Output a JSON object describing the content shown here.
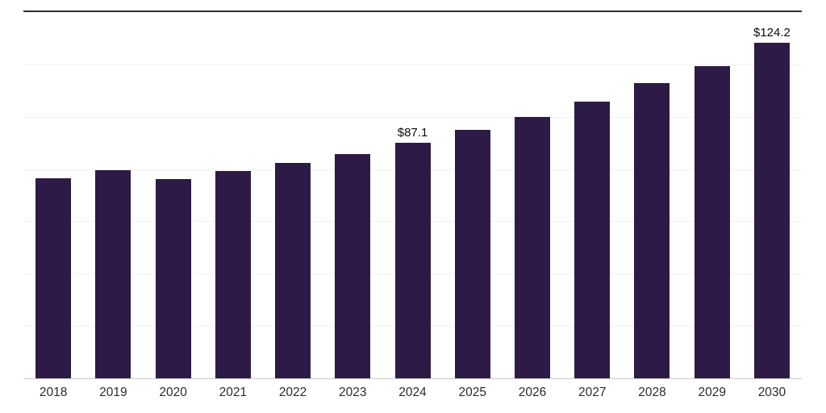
{
  "chart_data": {
    "type": "bar",
    "categories": [
      "2018",
      "2019",
      "2020",
      "2021",
      "2022",
      "2023",
      "2024",
      "2025",
      "2026",
      "2027",
      "2028",
      "2029",
      "2030"
    ],
    "values": [
      74.0,
      77.0,
      73.7,
      76.7,
      79.6,
      82.9,
      87.1,
      91.8,
      96.6,
      102.5,
      109.1,
      115.6,
      124.2
    ],
    "data_labels": [
      "",
      "",
      "",
      "",
      "",
      "",
      "$87.1",
      "",
      "",
      "",
      "",
      "",
      "$124.2"
    ],
    "bar_color": "#2E1A47",
    "xlabel": "",
    "ylabel": "",
    "ylim": [
      0,
      135.5
    ],
    "grid": "horizontal",
    "gridline_count": 6,
    "legend": "none",
    "background_color": "#ffffff"
  }
}
